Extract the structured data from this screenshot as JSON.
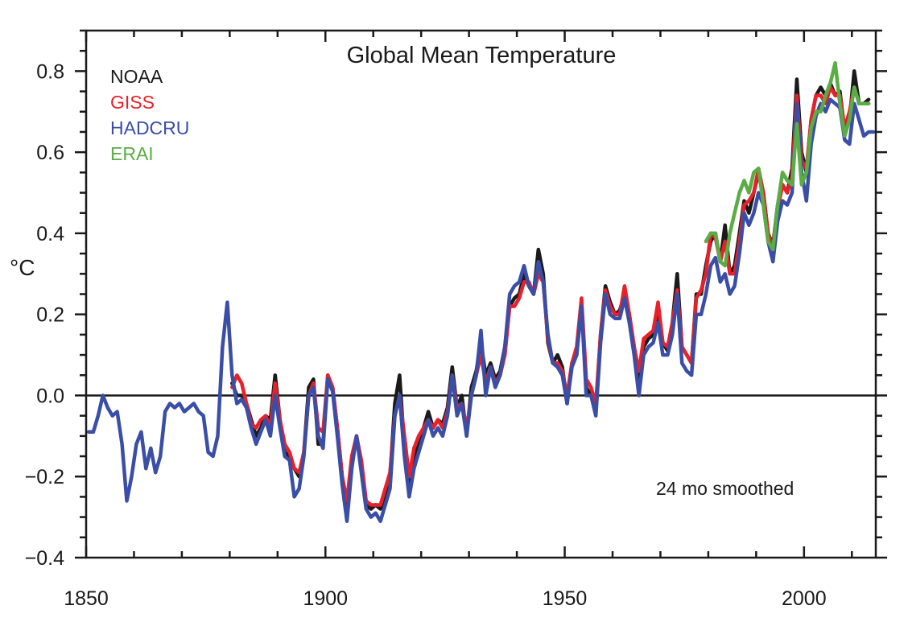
{
  "chart_data": {
    "type": "line",
    "title": "Global Mean Temperature",
    "ylabel": "°C",
    "xlabel": "",
    "annotation": "24 mo smoothed",
    "xlim": [
      1850,
      2015
    ],
    "ylim": [
      -0.4,
      0.9
    ],
    "x_ticks": [
      1850,
      1900,
      1950,
      2000
    ],
    "x_tick_labels": [
      "1850",
      "1900",
      "1950",
      "2000"
    ],
    "y_ticks": [
      -0.4,
      -0.2,
      0.0,
      0.2,
      0.4,
      0.6,
      0.8
    ],
    "y_tick_labels": [
      "−0.4",
      "−0.2",
      "0.0",
      "0.2",
      "0.4",
      "0.6",
      "0.8"
    ],
    "grid": false,
    "zero_line": true,
    "legend_placement": "top-left",
    "series": [
      {
        "name": "NOAA",
        "color": "#1a1a1a",
        "start": 1880,
        "values": [
          0.03,
          0.0,
          0.0,
          -0.02,
          -0.06,
          -0.1,
          -0.08,
          -0.05,
          -0.06,
          0.05,
          -0.06,
          -0.14,
          -0.15,
          -0.18,
          -0.2,
          -0.14,
          0.02,
          0.04,
          -0.12,
          -0.12,
          0.05,
          0.02,
          -0.08,
          -0.2,
          -0.28,
          -0.17,
          -0.1,
          -0.17,
          -0.27,
          -0.28,
          -0.27,
          -0.28,
          -0.26,
          -0.2,
          -0.02,
          0.05,
          -0.13,
          -0.22,
          -0.15,
          -0.12,
          -0.08,
          -0.04,
          -0.08,
          -0.06,
          -0.07,
          -0.03,
          0.07,
          -0.03,
          0.0,
          -0.1,
          0.02,
          0.06,
          0.13,
          0.05,
          0.08,
          0.04,
          0.06,
          0.12,
          0.22,
          0.24,
          0.25,
          0.3,
          0.27,
          0.25,
          0.36,
          0.3,
          0.13,
          0.08,
          0.1,
          0.07,
          -0.02,
          0.08,
          0.1,
          0.23,
          0.02,
          0.0,
          -0.04,
          0.15,
          0.27,
          0.23,
          0.2,
          0.21,
          0.25,
          0.2,
          0.12,
          0.04,
          0.12,
          0.14,
          0.15,
          0.21,
          0.13,
          0.11,
          0.18,
          0.3,
          0.12,
          0.1,
          0.08,
          0.25,
          0.25,
          0.32,
          0.38,
          0.4,
          0.33,
          0.42,
          0.3,
          0.32,
          0.4,
          0.48,
          0.45,
          0.5,
          0.55,
          0.5,
          0.4,
          0.37,
          0.47,
          0.52,
          0.5,
          0.56,
          0.78,
          0.6,
          0.55,
          0.68,
          0.74,
          0.76,
          0.74,
          0.77,
          0.74,
          0.75,
          0.65,
          0.68,
          0.8,
          0.72,
          0.72,
          0.73
        ]
      },
      {
        "name": "GISS",
        "color": "#e8202a",
        "start": 1880,
        "values": [
          0.02,
          0.05,
          0.03,
          -0.02,
          -0.07,
          -0.08,
          -0.06,
          -0.05,
          -0.08,
          0.03,
          -0.06,
          -0.12,
          -0.14,
          -0.18,
          -0.19,
          -0.14,
          0.0,
          0.03,
          -0.08,
          -0.09,
          0.05,
          0.02,
          -0.08,
          -0.2,
          -0.26,
          -0.15,
          -0.1,
          -0.16,
          -0.26,
          -0.27,
          -0.27,
          -0.27,
          -0.23,
          -0.19,
          -0.05,
          0.0,
          -0.1,
          -0.2,
          -0.13,
          -0.1,
          -0.08,
          -0.06,
          -0.08,
          -0.06,
          -0.08,
          -0.04,
          0.05,
          -0.03,
          -0.02,
          -0.08,
          0.0,
          0.05,
          0.1,
          0.03,
          0.07,
          0.03,
          0.05,
          0.1,
          0.22,
          0.22,
          0.24,
          0.28,
          0.28,
          0.25,
          0.3,
          0.28,
          0.14,
          0.08,
          0.08,
          0.06,
          0.0,
          0.08,
          0.12,
          0.24,
          0.04,
          0.02,
          -0.02,
          0.15,
          0.26,
          0.22,
          0.2,
          0.2,
          0.27,
          0.2,
          0.12,
          0.06,
          0.14,
          0.15,
          0.16,
          0.23,
          0.13,
          0.12,
          0.18,
          0.26,
          0.12,
          0.1,
          0.08,
          0.24,
          0.26,
          0.3,
          0.4,
          0.39,
          0.33,
          0.38,
          0.3,
          0.3,
          0.38,
          0.47,
          0.48,
          0.5,
          0.56,
          0.5,
          0.4,
          0.36,
          0.46,
          0.52,
          0.5,
          0.54,
          0.74,
          0.58,
          0.56,
          0.68,
          0.74,
          0.74,
          0.72,
          0.76,
          0.74,
          0.74,
          0.66,
          0.7,
          0.76,
          0.72,
          0.72,
          0.72
        ]
      },
      {
        "name": "HADCRU",
        "color": "#3a4ea8",
        "start": 1850,
        "values": [
          -0.09,
          -0.09,
          -0.05,
          0.0,
          -0.03,
          -0.05,
          -0.04,
          -0.12,
          -0.26,
          -0.2,
          -0.12,
          -0.09,
          -0.18,
          -0.13,
          -0.19,
          -0.15,
          -0.04,
          -0.02,
          -0.03,
          -0.02,
          -0.04,
          -0.03,
          -0.02,
          -0.04,
          -0.05,
          -0.14,
          -0.15,
          -0.1,
          0.12,
          0.23,
          0.05,
          -0.02,
          -0.01,
          -0.03,
          -0.08,
          -0.12,
          -0.09,
          -0.06,
          -0.1,
          0.0,
          -0.08,
          -0.15,
          -0.16,
          -0.25,
          -0.23,
          -0.15,
          0.0,
          0.02,
          -0.1,
          -0.13,
          0.04,
          0.01,
          -0.1,
          -0.22,
          -0.31,
          -0.18,
          -0.1,
          -0.19,
          -0.28,
          -0.3,
          -0.29,
          -0.31,
          -0.27,
          -0.23,
          -0.05,
          0.0,
          -0.15,
          -0.25,
          -0.18,
          -0.14,
          -0.1,
          -0.06,
          -0.1,
          -0.08,
          -0.1,
          -0.05,
          0.05,
          -0.05,
          -0.02,
          -0.1,
          0.0,
          0.05,
          0.16,
          0.0,
          0.07,
          0.02,
          0.05,
          0.12,
          0.25,
          0.27,
          0.28,
          0.32,
          0.27,
          0.25,
          0.33,
          0.28,
          0.15,
          0.08,
          0.07,
          0.05,
          -0.02,
          0.07,
          0.1,
          0.22,
          0.0,
          0.0,
          -0.05,
          0.13,
          0.25,
          0.2,
          0.19,
          0.19,
          0.24,
          0.18,
          0.1,
          0.0,
          0.1,
          0.12,
          0.13,
          0.18,
          0.1,
          0.1,
          0.15,
          0.25,
          0.08,
          0.06,
          0.05,
          0.2,
          0.2,
          0.25,
          0.32,
          0.34,
          0.28,
          0.3,
          0.25,
          0.27,
          0.35,
          0.45,
          0.42,
          0.45,
          0.5,
          0.47,
          0.38,
          0.33,
          0.43,
          0.48,
          0.47,
          0.5,
          0.72,
          0.55,
          0.48,
          0.62,
          0.69,
          0.72,
          0.7,
          0.73,
          0.72,
          0.71,
          0.63,
          0.62,
          0.72,
          0.68,
          0.64,
          0.65,
          0.65
        ]
      },
      {
        "name": "ERAI",
        "color": "#5aad45",
        "start": 1979,
        "values": [
          0.38,
          0.4,
          0.4,
          0.33,
          0.32,
          0.4,
          0.45,
          0.5,
          0.53,
          0.5,
          0.55,
          0.56,
          0.47,
          0.38,
          0.36,
          0.47,
          0.55,
          0.53,
          0.52,
          0.67,
          0.52,
          0.55,
          0.66,
          0.7,
          0.7,
          0.74,
          0.77,
          0.82,
          0.72,
          0.64,
          0.68,
          0.76,
          0.72,
          0.72,
          0.72
        ]
      }
    ]
  }
}
